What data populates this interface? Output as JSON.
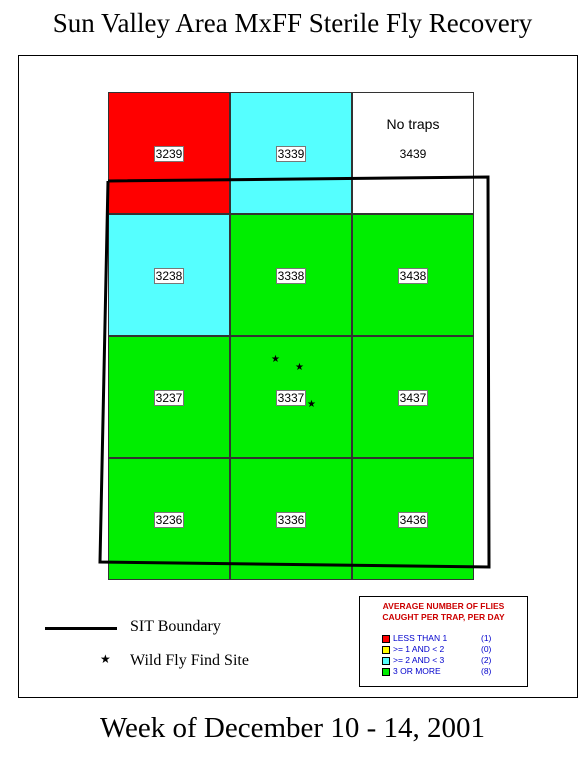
{
  "title": "Sun Valley Area MxFF Sterile Fly Recovery",
  "subtitle": "Week of December 10 - 14, 2001",
  "colors": {
    "red": "#ff0000",
    "yellow": "#ffff00",
    "cyan": "#55ffff",
    "green": "#00ee00",
    "white": "#ffffff"
  },
  "grid_cells": [
    {
      "id": "3239",
      "col": 0,
      "row": 0,
      "category": "red"
    },
    {
      "id": "3339",
      "col": 1,
      "row": 0,
      "category": "cyan"
    },
    {
      "id": "3439",
      "col": 2,
      "row": 0,
      "category": "white",
      "note": "No traps"
    },
    {
      "id": "3238",
      "col": 0,
      "row": 1,
      "category": "cyan"
    },
    {
      "id": "3338",
      "col": 1,
      "row": 1,
      "category": "green"
    },
    {
      "id": "3438",
      "col": 2,
      "row": 1,
      "category": "green"
    },
    {
      "id": "3237",
      "col": 0,
      "row": 2,
      "category": "green"
    },
    {
      "id": "3337",
      "col": 1,
      "row": 2,
      "category": "green"
    },
    {
      "id": "3437",
      "col": 2,
      "row": 2,
      "category": "green"
    },
    {
      "id": "3236",
      "col": 0,
      "row": 3,
      "category": "green"
    },
    {
      "id": "3336",
      "col": 1,
      "row": 3,
      "category": "green"
    },
    {
      "id": "3436",
      "col": 2,
      "row": 3,
      "category": "green"
    }
  ],
  "wild_fly_find_sites": [
    {
      "cell": "3337",
      "count": 3
    }
  ],
  "legend": {
    "boundary_label": "SIT Boundary",
    "wild_fly_label": "Wild Fly Find Site",
    "box_title_1": "AVERAGE NUMBER OF FLIES",
    "box_title_2": "CAUGHT PER TRAP, PER DAY",
    "items": [
      {
        "label": "LESS THAN 1",
        "count": "(1)",
        "color": "#ff0000"
      },
      {
        "label": ">= 1 AND < 2",
        "count": "(0)",
        "color": "#ffff00"
      },
      {
        "label": ">= 2 AND < 3",
        "count": "(2)",
        "color": "#55ffff"
      },
      {
        "label": "3 OR MORE",
        "count": "(8)",
        "color": "#00ee00"
      }
    ]
  }
}
